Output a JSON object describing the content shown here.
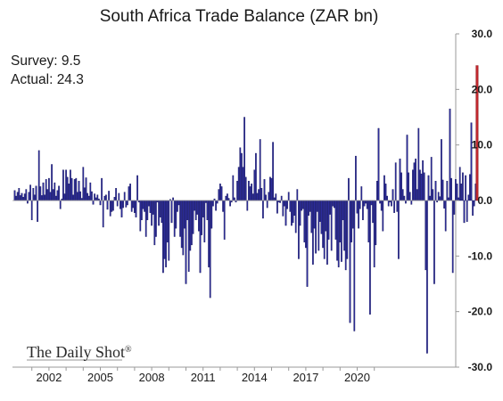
{
  "chart_data": {
    "type": "bar",
    "title": "South Africa Trade Balance (ZAR bn)",
    "annotations": {
      "survey": "Survey: 9.5",
      "actual": "Actual:  24.3"
    },
    "source_logo": "The Daily Shot",
    "ylim": [
      -30,
      30
    ],
    "yticks": [
      "30.0",
      "20.0",
      "10.0",
      "0.0",
      "-10.0",
      "-20.0",
      "-30.0"
    ],
    "ytick_values": [
      30,
      20,
      10,
      0,
      -10,
      -20,
      -30
    ],
    "xtick_labels": [
      "2002",
      "2005",
      "2008",
      "2011",
      "2014",
      "2017",
      "2020"
    ],
    "xtick_years": [
      2002,
      2005,
      2008,
      2011,
      2014,
      2017,
      2020
    ],
    "x_start": "2000-01",
    "frequency": "monthly",
    "colors": {
      "bar": "#2e2e9e",
      "latest": "#c0282d"
    },
    "series": [
      {
        "values": [
          1.8,
          0.8,
          1.5,
          2.2,
          0.9,
          1.3,
          0.6,
          1.2,
          2.0,
          -0.5,
          1.5,
          2.8,
          -3.5,
          2.2,
          1.0,
          2.6,
          -3.8,
          9.0,
          2.5,
          0.9,
          3.2,
          1.0,
          3.8,
          2.0,
          4.0,
          1.5,
          6.5,
          2.0,
          3.2,
          0.8,
          1.8,
          2.6,
          -1.5,
          0.3,
          5.5,
          1.2,
          5.5,
          4.2,
          3.0,
          5.5,
          4.0,
          1.0,
          3.8,
          4.0,
          1.5,
          3.5,
          1.6,
          0.4,
          6.0,
          2.3,
          4.1,
          1.3,
          0.8,
          3.2,
          1.6,
          -0.7,
          1.2,
          0.5,
          1.0,
          0.3,
          -0.8,
          4.0,
          -4.8,
          0.8,
          1.0,
          -1.6,
          1.7,
          -2.8,
          -2.0,
          -1.8,
          0.6,
          2.2,
          -1.0,
          1.3,
          -1.5,
          -3.0,
          -1.3,
          1.5,
          -1.2,
          -0.8,
          2.5,
          3.0,
          -2.0,
          -1.3,
          -2.2,
          -3.0,
          4.5,
          -0.3,
          -5.5,
          -3.5,
          -1.5,
          -2.0,
          -6.5,
          -3.5,
          -1.0,
          -2.2,
          -4.5,
          -2.5,
          -8.0,
          -6.5,
          -0.3,
          -4.5,
          -3.0,
          -4.0,
          -13.0,
          -10.5,
          -12.0,
          -7.5,
          -10.8,
          0.2,
          -4.0,
          0.5,
          -6.5,
          -5.0,
          -2.0,
          -0.8,
          -6.5,
          -8.5,
          -9.8,
          -5.0,
          -15.0,
          -3.5,
          -12.8,
          -9.0,
          -8.0,
          -6.0,
          -1.8,
          -3.5,
          -2.5,
          -5.5,
          -13.0,
          -6.2,
          -3.0,
          -7.5,
          -0.4,
          -3.5,
          -12.0,
          -17.5,
          -5.0,
          -1.0,
          0.3,
          -1.8,
          -0.5,
          2.0,
          3.0,
          2.5,
          -2.0,
          -7.0,
          0.8,
          1.2,
          0.4,
          -1.0,
          -0.3,
          4.5,
          0.5,
          -0.3,
          3.5,
          6.0,
          9.5,
          8.5,
          6.0,
          15.0,
          4.2,
          -1.8,
          3.5,
          2.5,
          3.0,
          1.2,
          5.5,
          8.5,
          1.3,
          2.0,
          11.0,
          2.2,
          -3.2,
          3.8,
          1.0,
          -1.3,
          1.5,
          4.2,
          4.0,
          10.5,
          0.5,
          1.2,
          -2.3,
          -0.3,
          -0.4,
          0.8,
          -2.8,
          -1.0,
          -4.5,
          -1.5,
          1.5,
          -2.0,
          -4.5,
          -4.0,
          -2.7,
          -5.8,
          2.0,
          -10.5,
          -4.5,
          -1.8,
          -1.5,
          -7.5,
          -8.5,
          -15.5,
          -2.7,
          -2.0,
          -5.8,
          -11.5,
          -5.0,
          -9.5,
          -2.0,
          -9.0,
          -3.8,
          -6.0,
          -8.5,
          -10.5,
          -5.5,
          -11.5,
          -7.0,
          -2.5,
          -9.0,
          -1.0,
          -1.3,
          -7.0,
          -10.8,
          -12.0,
          -7.5,
          -11.0,
          -3.5,
          -9.0,
          -12.5,
          -10.5,
          4.0,
          -22.0,
          -7.5,
          -5.0,
          -23.5,
          8.0,
          -2.3,
          -5.0,
          -1.5,
          2.5,
          -3.5,
          -1.0,
          -0.5,
          -1.5,
          -7.5,
          -20.5,
          -0.8,
          -4.0,
          -12.0,
          -8.0,
          3.5,
          13.0,
          -0.5,
          -1.8,
          -5.5,
          4.5,
          3.0,
          0.8,
          -1.0,
          -0.3,
          -1.0,
          2.0,
          -2.2,
          6.8,
          -2.0,
          -10.5,
          7.5,
          5.0,
          2.0,
          0.8,
          -0.5,
          11.8,
          5.0,
          1.5,
          -0.7,
          5.5,
          6.8,
          7.5,
          2.0,
          13.0,
          5.5,
          4.8,
          7.2,
          5.0,
          -12.5,
          -27.5,
          4.5,
          0.8,
          7.8,
          2.0,
          -15.0,
          3.5,
          -0.3,
          1.5,
          0.7,
          11.0,
          3.7,
          -1.4,
          -5.5,
          3.5,
          0.5,
          16.5,
          4.0,
          -13.0,
          -2.5,
          3.8,
          3.0,
          0.5,
          6.0,
          3.0,
          5.0,
          -4.0,
          4.5,
          -3.8,
          1.0,
          4.7,
          14.0,
          -2.7,
          -1.0,
          3.0,
          24.3
        ]
      }
    ]
  }
}
